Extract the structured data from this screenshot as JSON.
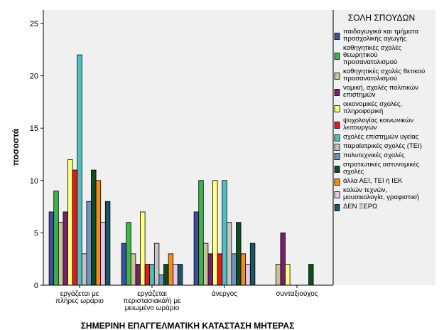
{
  "chart_data": {
    "type": "bar",
    "xlabel": "ΣΗΜΕΡΙΝΗ ΕΠΑΓΓΕΛΜΑΤΙΚΗ ΚΑΤΑΣΤΑΣΗ ΜΗΤΕΡΑΣ",
    "ylabel": "ποσοστά",
    "ylim": [
      0,
      25
    ],
    "yticks": [
      0,
      5,
      10,
      15,
      20,
      25
    ],
    "grid": false,
    "legend_title": "ΣΟΛΗ ΣΠΟΥΔΩΝ",
    "legend_position": "right",
    "categories": [
      [
        "εργάζεται με",
        "πλήρες ωράριο"
      ],
      [
        "εργάζεται",
        "περιστασιακά/ή με",
        "μειωμένο ωράριο"
      ],
      [
        "άνεργος"
      ],
      [
        "συνταξιούχος"
      ]
    ],
    "series": [
      {
        "name": [
          "παιδαγωγικά και τμήματα",
          "προσχολικής αγωγής"
        ],
        "color": "#3d4f9e",
        "values": [
          7,
          4,
          7,
          0
        ]
      },
      {
        "name": [
          "καθηγητικές σχολές",
          "θεωρητικού",
          "προσανατολισμού"
        ],
        "color": "#3ab54a",
        "values": [
          9,
          6,
          10,
          0
        ]
      },
      {
        "name": [
          "καθηγητικές σχολές θετικού",
          "προσανατολισμού"
        ],
        "color": "#c9c29a",
        "values": [
          6,
          3,
          4,
          2
        ]
      },
      {
        "name": [
          "νομική, σχολές πολιτικών",
          "επιστημών"
        ],
        "color": "#76206a",
        "values": [
          7,
          2,
          3,
          5
        ]
      },
      {
        "name": [
          "οικονομικές σχολές,",
          "πληροφορική"
        ],
        "color": "#ffff80",
        "values": [
          12,
          7,
          10,
          2
        ]
      },
      {
        "name": [
          "ψυχολογίας κοινωνικών",
          "λειτουργών"
        ],
        "color": "#e3191b",
        "values": [
          11,
          2,
          3,
          0
        ]
      },
      {
        "name": [
          "σχολές επιστημών υγείας"
        ],
        "color": "#4dbfbf",
        "values": [
          22,
          2,
          10,
          0
        ]
      },
      {
        "name": [
          "παραϊατρικές σχολές (ΤΕΙ)"
        ],
        "color": "#c4c4c4",
        "values": [
          3,
          4,
          6,
          0
        ]
      },
      {
        "name": [
          "πολυτεχνικές σχολές"
        ],
        "color": "#6f93c4",
        "values": [
          8,
          1,
          3,
          0
        ]
      },
      {
        "name": [
          "στρατιωτικές αστυνομικές",
          "σχολές"
        ],
        "color": "#0f4d20",
        "values": [
          11,
          2,
          6,
          2
        ]
      },
      {
        "name": [
          "άλλα ΑΕΙ, ΤΕΙ ή ΙΕΚ"
        ],
        "color": "#f28c1c",
        "values": [
          10,
          3,
          3,
          0
        ]
      },
      {
        "name": [
          "καλών τεχνών,",
          "μουσικολογία, γραφιστική"
        ],
        "color": "#e3c8ee",
        "values": [
          6,
          2,
          2,
          0
        ]
      },
      {
        "name": [
          "ΔΕΝ ΞΕΡΩ"
        ],
        "color": "#1e5466",
        "values": [
          8,
          2,
          4,
          0
        ]
      }
    ]
  }
}
